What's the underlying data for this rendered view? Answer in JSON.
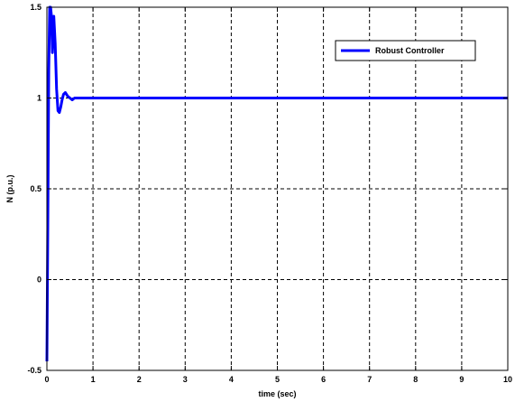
{
  "chart_data": {
    "type": "line",
    "xlabel": "time (sec)",
    "ylabel": "N (p.u.)",
    "xlim": [
      0,
      10
    ],
    "ylim": [
      -0.5,
      1.5
    ],
    "xticks": [
      0,
      1,
      2,
      3,
      4,
      5,
      6,
      7,
      8,
      9,
      10
    ],
    "yticks": [
      -0.5,
      0,
      0.5,
      1,
      1.5
    ],
    "xtick_labels": [
      "0",
      "1",
      "2",
      "3",
      "4",
      "5",
      "6",
      "7",
      "8",
      "9",
      "10"
    ],
    "ytick_labels": [
      "-0.5",
      "0",
      "0.5",
      "1",
      "1.5"
    ],
    "grid": true,
    "legend_position": "top-right",
    "series": [
      {
        "name": "Robust Controller",
        "color": "#0000ff",
        "x": [
          0,
          0.02,
          0.04,
          0.06,
          0.08,
          0.1,
          0.12,
          0.15,
          0.18,
          0.21,
          0.24,
          0.27,
          0.3,
          0.33,
          0.36,
          0.4,
          0.45,
          0.5,
          0.55,
          0.6,
          0.7,
          0.8,
          1.0,
          2.0,
          4.0,
          6.0,
          8.0,
          10.0
        ],
        "y": [
          -0.45,
          0.3,
          1.15,
          1.5,
          1.5,
          1.45,
          1.25,
          1.45,
          1.3,
          1.05,
          0.93,
          0.92,
          0.95,
          0.99,
          1.02,
          1.03,
          1.01,
          1.0,
          0.99,
          1.0,
          1.0,
          1.0,
          1.0,
          1.0,
          1.0,
          1.0,
          1.0,
          1.0
        ]
      }
    ]
  }
}
